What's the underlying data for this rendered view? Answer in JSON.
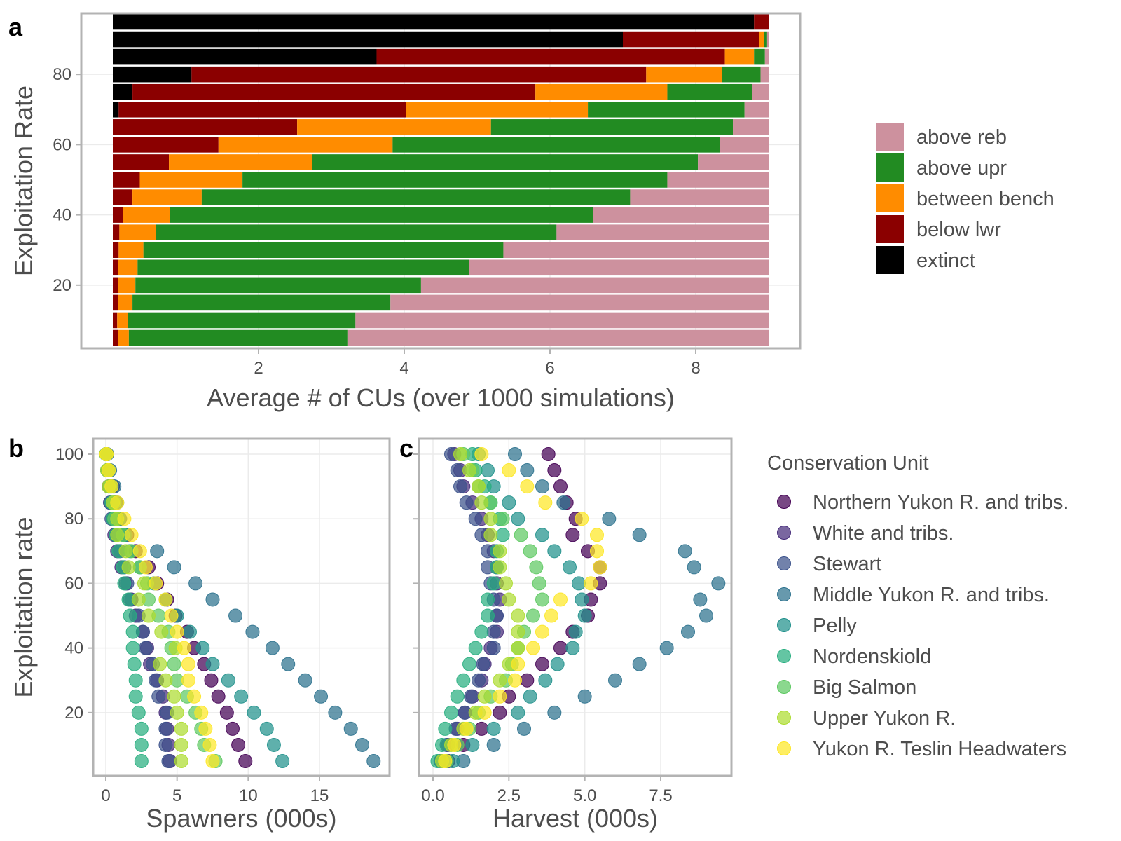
{
  "chart_data": [
    {
      "panel": "a",
      "type": "bar",
      "orientation": "horizontal",
      "stacked": true,
      "xlabel": "Average # of CUs (over 1000 simulations)",
      "ylabel": "Exploitation Rate",
      "xlim": [
        0,
        9
      ],
      "ylim": [
        0,
        97.5
      ],
      "x_ticks": [
        2,
        4,
        6,
        8
      ],
      "y_ticks": [
        20,
        40,
        60,
        80
      ],
      "grid": true,
      "legend_position": "right",
      "y_values": [
        5,
        10,
        15,
        20,
        25,
        30,
        35,
        40,
        45,
        50,
        55,
        60,
        65,
        70,
        75,
        80,
        85,
        90,
        95
      ],
      "stack_order": [
        "extinct",
        "below lwr",
        "between bench",
        "above upr",
        "above reb"
      ],
      "series": [
        {
          "name": "extinct",
          "color": "#000000",
          "values": [
            0,
            0,
            0,
            0,
            0,
            0,
            0,
            0,
            0,
            0,
            0,
            0,
            0,
            0.08,
            0.27,
            1.08,
            3.62,
            7.0,
            8.8
          ]
        },
        {
          "name": "below lwr",
          "color": "#8b0000",
          "values": [
            0.07,
            0.06,
            0.07,
            0.07,
            0.07,
            0.08,
            0.09,
            0.14,
            0.27,
            0.37,
            0.77,
            1.45,
            2.53,
            3.94,
            5.53,
            6.24,
            4.78,
            1.87,
            0.2
          ]
        },
        {
          "name": "between bench",
          "color": "#ff8c00",
          "values": [
            0.15,
            0.15,
            0.2,
            0.24,
            0.27,
            0.34,
            0.5,
            0.64,
            0.95,
            1.41,
            1.97,
            2.39,
            2.66,
            2.5,
            1.81,
            1.04,
            0.4,
            0.07,
            0
          ]
        },
        {
          "name": "above upr",
          "color": "#228b22",
          "values": [
            3.0,
            3.12,
            3.54,
            3.92,
            4.55,
            4.94,
            5.5,
            5.81,
            5.88,
            5.83,
            5.29,
            4.49,
            3.32,
            2.15,
            1.16,
            0.53,
            0.15,
            0.04,
            0
          ]
        },
        {
          "name": "above reb",
          "color": "#cd919e",
          "values": [
            5.78,
            5.67,
            5.19,
            4.77,
            4.11,
            3.64,
            2.91,
            2.41,
            1.9,
            1.39,
            0.97,
            0.67,
            0.49,
            0.33,
            0.23,
            0.11,
            0.05,
            0.02,
            0
          ]
        }
      ]
    },
    {
      "panel": "b",
      "type": "scatter",
      "xlabel": "Spawners (000s)",
      "ylabel": "Exploitation rate",
      "xlim": [
        -0.8,
        19.5
      ],
      "ylim": [
        2.5,
        102.5
      ],
      "x_ticks": [
        0,
        5,
        10,
        15
      ],
      "y_ticks": [
        20,
        40,
        60,
        80,
        100
      ],
      "exploitation_rates": [
        5,
        10,
        15,
        20,
        25,
        30,
        35,
        40,
        45,
        50,
        55,
        60,
        65,
        70,
        75,
        80,
        85,
        90,
        95,
        100
      ],
      "series": [
        {
          "name": "Northern Yukon R. and tribs.",
          "values": [
            9.8,
            9.3,
            8.9,
            8.5,
            7.9,
            7.4,
            6.9,
            6.2,
            5.7,
            4.9,
            4.3,
            3.6,
            3.0,
            2.1,
            1.5,
            1.0,
            0.7,
            0.5,
            0.2,
            0.05
          ]
        },
        {
          "name": "White and tribs.",
          "values": [
            4.5,
            4.4,
            4.3,
            4.2,
            4.0,
            3.6,
            3.1,
            2.9,
            2.6,
            2.1,
            1.8,
            1.4,
            1.1,
            0.8,
            0.6,
            0.5,
            0.3,
            0.2,
            0.1,
            0.02
          ]
        },
        {
          "name": "Stewart",
          "values": [
            4.4,
            4.2,
            4.2,
            4.3,
            3.7,
            3.5,
            3.3,
            2.8,
            2.6,
            2.3,
            1.7,
            1.5,
            1.3,
            1.0,
            0.7,
            0.4,
            0.3,
            0.2,
            0.1,
            0.03
          ]
        },
        {
          "name": "Middle Yukon R. and tribs.",
          "values": [
            18.8,
            18.0,
            17.2,
            16.1,
            15.1,
            14.0,
            12.8,
            11.7,
            10.3,
            9.1,
            7.5,
            6.3,
            4.8,
            3.6,
            1.4,
            1.0,
            0.8,
            0.6,
            0.3,
            0.1
          ]
        },
        {
          "name": "Pelly",
          "values": [
            12.4,
            11.8,
            11.3,
            10.4,
            9.5,
            8.6,
            7.5,
            6.8,
            5.9,
            5.0,
            4.2,
            3.4,
            2.4,
            1.7,
            1.3,
            0.9,
            0.6,
            0.4,
            0.2,
            0.05
          ]
        },
        {
          "name": "Nordenskiold",
          "values": [
            2.5,
            2.5,
            2.5,
            2.3,
            2.1,
            2.1,
            2.0,
            1.9,
            1.9,
            1.7,
            1.6,
            1.3,
            1.2,
            0.9,
            0.7,
            0.5,
            0.4,
            0.3,
            0.1,
            0.02
          ]
        },
        {
          "name": "Big Salmon",
          "values": [
            7.7,
            6.9,
            6.7,
            6.3,
            5.7,
            5.0,
            4.8,
            4.6,
            4.4,
            3.7,
            3.0,
            2.9,
            2.4,
            1.8,
            1.2,
            0.6,
            0.6,
            0.3,
            0.2,
            0.04
          ]
        },
        {
          "name": "Upper Yukon R.",
          "values": [
            5.3,
            5.3,
            5.3,
            5.0,
            4.8,
            4.2,
            3.8,
            4.9,
            3.9,
            3.0,
            2.3,
            2.7,
            1.6,
            1.4,
            0.8,
            0.8,
            0.5,
            0.2,
            0.1,
            0.03
          ]
        },
        {
          "name": "Yukon R. Teslin Headwaters",
          "values": [
            7.5,
            7.3,
            7.0,
            6.7,
            6.2,
            5.8,
            5.8,
            5.5,
            5.0,
            4.6,
            4.2,
            3.5,
            2.8,
            2.4,
            1.8,
            1.3,
            0.8,
            0.4,
            0.2,
            0.05
          ]
        }
      ]
    },
    {
      "panel": "c",
      "type": "scatter",
      "xlabel": "Harvest (000s)",
      "ylabel": "",
      "xlim": [
        -0.45,
        9.8
      ],
      "ylim": [
        2.5,
        102.5
      ],
      "x_ticks": [
        0.0,
        2.5,
        5.0,
        7.5
      ],
      "y_ticks": [
        20,
        40,
        60,
        80,
        100
      ],
      "exploitation_rates": [
        5,
        10,
        15,
        20,
        25,
        30,
        35,
        40,
        45,
        50,
        55,
        60,
        65,
        70,
        75,
        80,
        85,
        90,
        95,
        100
      ],
      "series": [
        {
          "name": "Northern Yukon R. and tribs.",
          "values": [
            0.5,
            1.0,
            1.6,
            2.2,
            2.5,
            3.1,
            3.6,
            4.2,
            4.6,
            5.1,
            5.2,
            5.5,
            5.5,
            5.1,
            4.6,
            4.7,
            4.4,
            4.2,
            4.0,
            3.8
          ]
        },
        {
          "name": "White and tribs.",
          "values": [
            0.25,
            0.5,
            0.8,
            1.05,
            1.3,
            1.6,
            1.7,
            1.9,
            2.1,
            2.1,
            2.2,
            2.1,
            2.1,
            2.0,
            1.8,
            1.6,
            1.3,
            1.0,
            0.9,
            0.7
          ]
        },
        {
          "name": "Stewart",
          "values": [
            0.25,
            0.45,
            0.75,
            1.05,
            1.25,
            1.5,
            1.65,
            2.0,
            2.0,
            2.1,
            2.0,
            1.9,
            1.8,
            1.8,
            1.6,
            1.4,
            1.1,
            0.9,
            0.8,
            0.6
          ]
        },
        {
          "name": "Middle Yukon R. and tribs.",
          "values": [
            1.0,
            2.0,
            3.0,
            4.0,
            5.0,
            6.0,
            6.8,
            7.7,
            8.4,
            9.0,
            8.8,
            9.4,
            8.6,
            8.3,
            6.8,
            5.8,
            4.3,
            3.6,
            3.1,
            2.7
          ]
        },
        {
          "name": "Pelly",
          "values": [
            0.65,
            1.3,
            2.0,
            2.8,
            3.2,
            3.7,
            4.1,
            4.6,
            4.7,
            5.0,
            4.9,
            4.8,
            4.5,
            4.0,
            3.6,
            2.8,
            2.5,
            2.0,
            1.8,
            1.5
          ]
        },
        {
          "name": "Nordenskiold",
          "values": [
            0.15,
            0.3,
            0.4,
            0.6,
            0.8,
            1.0,
            1.2,
            1.4,
            1.6,
            1.8,
            1.8,
            2.0,
            2.1,
            2.1,
            2.3,
            2.2,
            1.9,
            1.7,
            1.4,
            1.3
          ]
        },
        {
          "name": "Big Salmon",
          "values": [
            0.45,
            0.8,
            1.2,
            1.5,
            1.9,
            2.4,
            2.6,
            2.8,
            3.0,
            3.3,
            3.6,
            3.5,
            3.4,
            3.2,
            2.9,
            2.3,
            1.9,
            1.5,
            1.3,
            1.0
          ]
        },
        {
          "name": "Upper Yukon R.",
          "values": [
            0.3,
            0.6,
            1.0,
            1.4,
            1.7,
            2.2,
            2.5,
            2.8,
            2.8,
            2.8,
            2.5,
            2.4,
            2.2,
            2.2,
            1.9,
            1.9,
            1.6,
            1.5,
            1.2,
            0.9
          ]
        },
        {
          "name": "Yukon R. Teslin Headwaters",
          "values": [
            0.4,
            0.7,
            1.1,
            1.7,
            2.2,
            2.7,
            2.8,
            3.3,
            3.6,
            3.9,
            4.2,
            5.2,
            5.5,
            5.4,
            5.4,
            4.9,
            3.7,
            3.1,
            2.5,
            1.6
          ]
        }
      ]
    }
  ],
  "panels": {
    "a": {
      "label": "a"
    },
    "b": {
      "label": "b"
    },
    "c": {
      "label": "c"
    }
  },
  "legend_a": {
    "items": [
      {
        "label": "above reb",
        "color": "#cd919e"
      },
      {
        "label": "above upr",
        "color": "#228b22"
      },
      {
        "label": "between bench",
        "color": "#ff8c00"
      },
      {
        "label": "below lwr",
        "color": "#8b0000"
      },
      {
        "label": "extinct",
        "color": "#000000"
      }
    ]
  },
  "legend_bc": {
    "title": "Conservation Unit",
    "items": [
      {
        "label": "Northern Yukon R. and tribs.",
        "color": "#440154"
      },
      {
        "label": "White and tribs.",
        "color": "#472d7b"
      },
      {
        "label": "Stewart",
        "color": "#3b528b"
      },
      {
        "label": "Middle Yukon R. and tribs.",
        "color": "#2c728e"
      },
      {
        "label": "Pelly",
        "color": "#21918c"
      },
      {
        "label": "Nordenskiold",
        "color": "#28ae80"
      },
      {
        "label": "Big Salmon",
        "color": "#5ec962"
      },
      {
        "label": "Upper Yukon R.",
        "color": "#addc30"
      },
      {
        "label": "Yukon R. Teslin Headwaters",
        "color": "#fde725"
      }
    ]
  },
  "colors": {
    "panel_border": "#b3b3b3",
    "grid": "#ebebeb"
  }
}
